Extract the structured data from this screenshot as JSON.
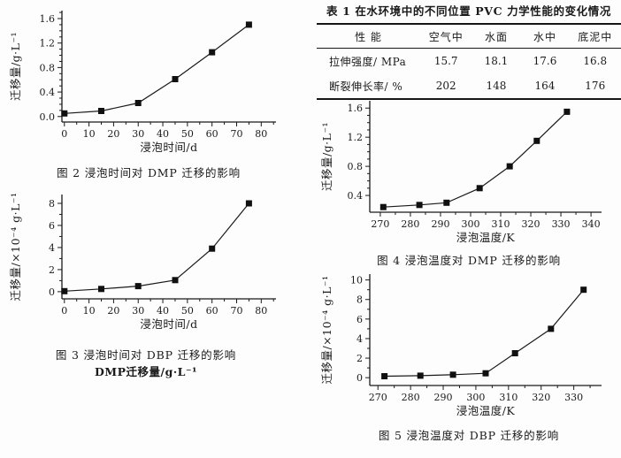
{
  "colors": {
    "ink": "#1a1a1a",
    "background": "#fdfdfd"
  },
  "table": {
    "title": "表 1  在水环境中的不同位置 PVC 力学性能的变化情况",
    "columns": [
      "性  能",
      "空气中",
      "水面",
      "水中",
      "底泥中"
    ],
    "rows": [
      {
        "label": "拉伸强度/ MPa",
        "values": [
          "15.7",
          "18.1",
          "17.6",
          "16.8"
        ]
      },
      {
        "label": "断裂伸长率/ %",
        "values": [
          "202",
          "148",
          "164",
          "176"
        ]
      }
    ]
  },
  "labels": {
    "dmp_sublabel": "DMP迁移量/g·L⁻¹"
  },
  "chart_data": [
    {
      "id": "fig2",
      "type": "line",
      "marker": "filled-square",
      "caption": "图 2  浸泡时间对 DMP 迁移的影响",
      "xlabel": "浸泡时间/d",
      "ylabel": "迁移量/g·L⁻¹",
      "x": [
        0,
        15,
        30,
        45,
        60,
        75
      ],
      "y": [
        0.05,
        0.09,
        0.22,
        0.61,
        1.05,
        1.5
      ],
      "xticks": [
        0,
        10,
        20,
        30,
        40,
        50,
        60,
        70,
        80
      ],
      "yticks": [
        0,
        0.4,
        0.8,
        1.2,
        1.6
      ],
      "ytick_labels": [
        "0.0",
        "0.4",
        "0.8",
        "1.2",
        "1.6"
      ],
      "xlim": [
        -1,
        86
      ],
      "ylim": [
        -0.09,
        1.73
      ],
      "minor_x": 2,
      "minor_y": 4,
      "grid": false,
      "legend": null
    },
    {
      "id": "fig3",
      "type": "line",
      "marker": "filled-square",
      "caption": "图 3  浸泡时间对 DBP 迁移的影响",
      "xlabel": "浸泡时间/d",
      "ylabel": "迁移量/×10⁻⁴ g·L⁻¹",
      "x": [
        0,
        15,
        30,
        45,
        60,
        75
      ],
      "y": [
        0.05,
        0.25,
        0.5,
        1.05,
        3.9,
        8.0
      ],
      "xticks": [
        0,
        10,
        20,
        30,
        40,
        50,
        60,
        70,
        80
      ],
      "yticks": [
        0,
        2,
        4,
        6,
        8
      ],
      "xlim": [
        -1,
        86
      ],
      "ylim": [
        -0.65,
        8.8
      ],
      "minor_x": 2,
      "minor_y": 2,
      "grid": false,
      "legend": null
    },
    {
      "id": "fig4",
      "type": "line",
      "marker": "filled-square",
      "caption": "图 4  浸泡温度对 DMP 迁移的影响",
      "xlabel": "浸泡温度/K",
      "ylabel": "迁移量/g·L⁻¹",
      "x": [
        271,
        283,
        292,
        303,
        313,
        322,
        332
      ],
      "y": [
        0.24,
        0.27,
        0.3,
        0.5,
        0.8,
        1.15,
        1.55
      ],
      "xticks": [
        270,
        280,
        290,
        300,
        310,
        320,
        330,
        340
      ],
      "yticks": [
        0.4,
        0.8,
        1.2,
        1.6
      ],
      "xlim": [
        266.5,
        343.5
      ],
      "ylim": [
        0.17,
        1.7
      ],
      "minor_x": 2,
      "minor_y": 4,
      "grid": false,
      "legend": null
    },
    {
      "id": "fig5",
      "type": "line",
      "marker": "filled-square",
      "caption": "图 5  浸泡温度对 DBP 迁移的影响",
      "xlabel": "浸泡温度/K",
      "ylabel": "迁移量/×10⁻⁴ g·L⁻¹",
      "x": [
        272,
        283,
        293,
        303,
        312,
        323,
        333
      ],
      "y": [
        0.15,
        0.2,
        0.3,
        0.45,
        2.5,
        5.0,
        9.0
      ],
      "xticks": [
        270,
        280,
        290,
        300,
        310,
        320,
        330
      ],
      "yticks": [
        0,
        2,
        4,
        6,
        8,
        10
      ],
      "xlim": [
        267.5,
        338.5
      ],
      "ylim": [
        -0.8,
        10.6
      ],
      "minor_x": 2,
      "minor_y": 2,
      "grid": false,
      "legend": null
    }
  ]
}
